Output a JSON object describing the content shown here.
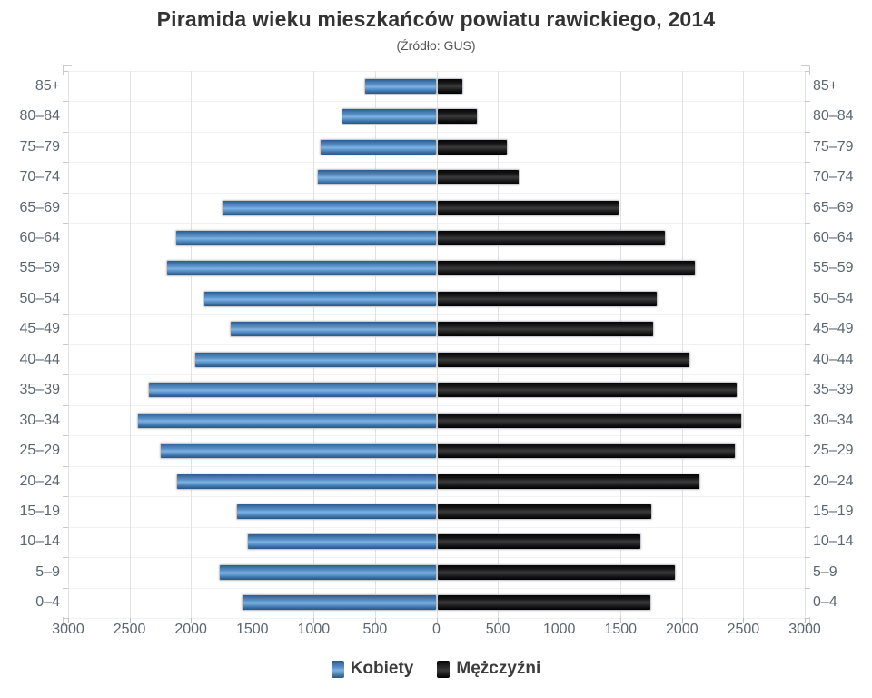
{
  "header": {
    "title": "Piramida wieku mieszkańców powiatu rawickiego, 2014",
    "subtitle": "(Źródło: GUS)"
  },
  "colors": {
    "female_bar": "#4379ae",
    "female_highlight": "#7fb2e2",
    "male_bar": "#111111",
    "axis_text": "#5b6670",
    "title_text": "#333333",
    "gridline": "#e2e2e2"
  },
  "chart_data": {
    "type": "bar",
    "variant": "population-pyramid",
    "title": "Piramida wieku mieszkańców powiatu rawickiego, 2014",
    "subtitle": "(Źródło: GUS)",
    "categories": [
      "85+",
      "80–84",
      "75–79",
      "70–74",
      "65–69",
      "60–64",
      "55–59",
      "50–54",
      "45–49",
      "40–44",
      "35–39",
      "30–34",
      "25–29",
      "20–24",
      "15–19",
      "10–14",
      "5–9",
      "0–4"
    ],
    "series": [
      {
        "name": "Kobiety",
        "side": "left",
        "color": "#4379ae",
        "values": [
          590,
          770,
          950,
          970,
          1750,
          2130,
          2200,
          1900,
          1680,
          1970,
          2350,
          2440,
          2250,
          2120,
          1630,
          1540,
          1770,
          1590
        ]
      },
      {
        "name": "Mężczyźni",
        "side": "right",
        "color": "#111111",
        "values": [
          220,
          340,
          580,
          680,
          1490,
          1870,
          2110,
          1800,
          1770,
          2070,
          2450,
          2490,
          2440,
          2150,
          1760,
          1670,
          1950,
          1750
        ]
      }
    ],
    "x_axis": {
      "tick_labels": [
        "3000",
        "2500",
        "2000",
        "1500",
        "1000",
        "500",
        "0",
        "500",
        "1000",
        "1500",
        "2000",
        "2500",
        "3000"
      ],
      "max_each_side": 3000,
      "tick_interval": 500
    },
    "y_axis_labels_mirrored": true,
    "grid": true,
    "legend_position": "bottom-center"
  },
  "legend": {
    "items": [
      {
        "label": "Kobiety"
      },
      {
        "label": "Mężczyźni"
      }
    ]
  }
}
